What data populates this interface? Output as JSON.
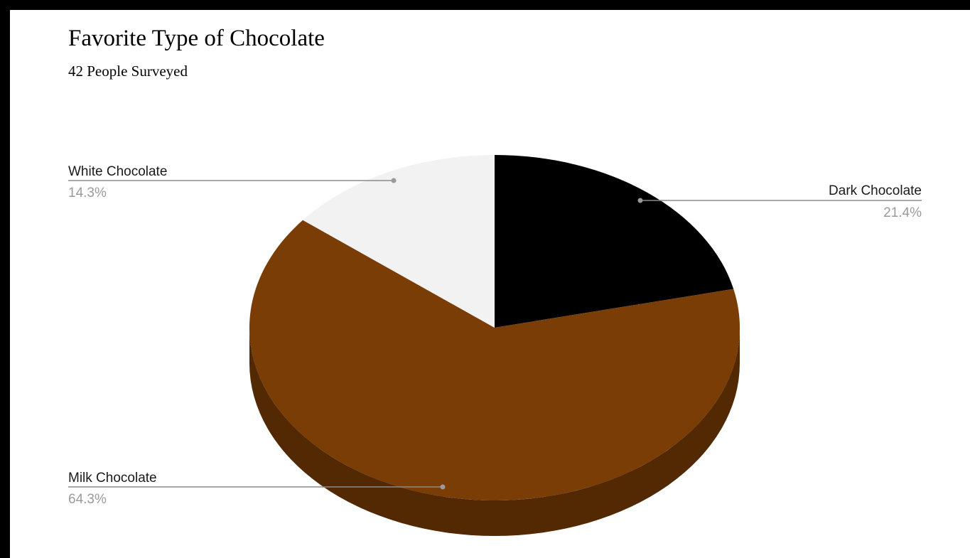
{
  "chart_data": {
    "type": "pie",
    "title": "Favorite Type of Chocolate",
    "subtitle": "42 People Surveyed",
    "three_d": true,
    "slices": [
      {
        "label": "Dark Chocolate",
        "value": 21.4,
        "display": "21.4%",
        "color": "#000000",
        "side_color": "#000000"
      },
      {
        "label": "Milk Chocolate",
        "value": 64.3,
        "display": "64.3%",
        "color": "#7a3d05",
        "side_color": "#522903"
      },
      {
        "label": "White Chocolate",
        "value": 14.3,
        "display": "14.3%",
        "color": "#f2f2f2",
        "side_color": "#c8c8c8"
      }
    ]
  }
}
